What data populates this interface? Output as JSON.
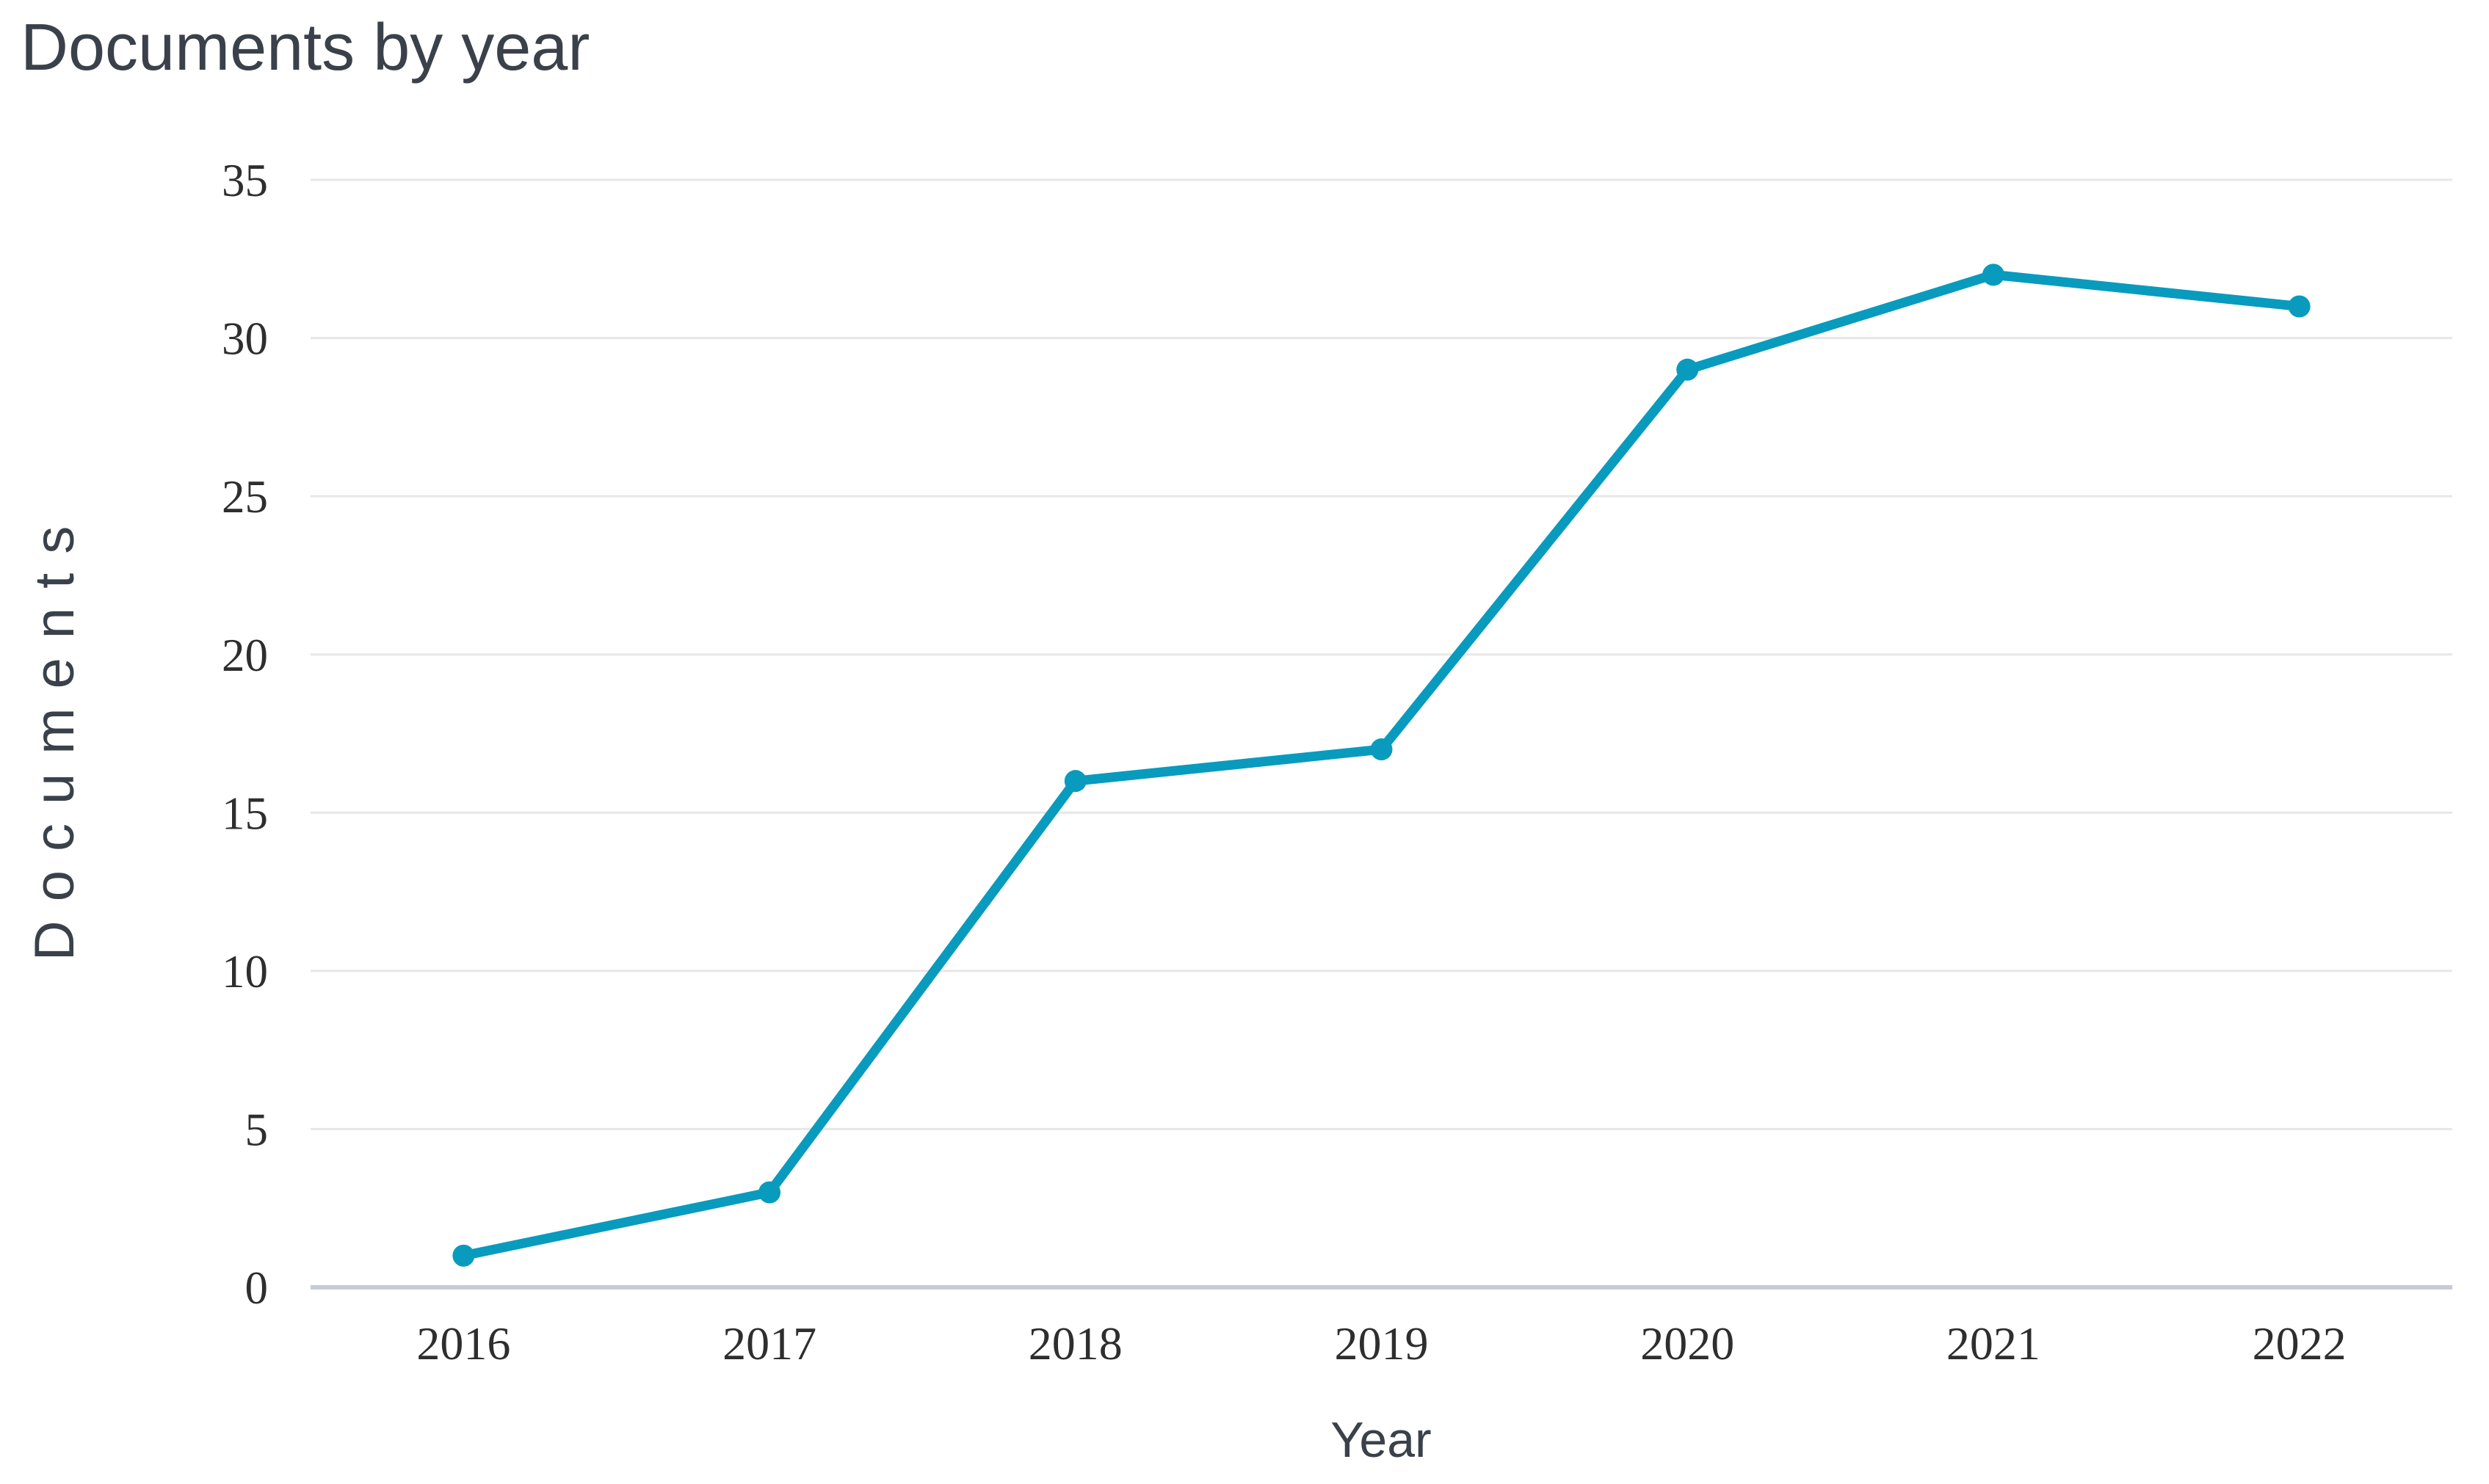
{
  "chart_data": {
    "type": "line",
    "title": "Documents by year",
    "xlabel": "Year",
    "ylabel": "Documents",
    "categories": [
      "2016",
      "2017",
      "2018",
      "2019",
      "2020",
      "2021",
      "2022"
    ],
    "values": [
      1,
      3,
      16,
      17,
      29,
      32,
      31
    ],
    "yticks": [
      0,
      5,
      10,
      15,
      20,
      25,
      30,
      35
    ],
    "ylim": [
      0,
      35
    ],
    "grid": true,
    "legend": false,
    "marker": "circle",
    "colors": {
      "line": "#089bbd",
      "marker": "#089bbd",
      "gridline": "#e7e7e7",
      "axis_line": "#c7ccd3",
      "tick_text": "#2e2e2e",
      "title_text": "#3b414b",
      "background": "#ffffff"
    }
  }
}
